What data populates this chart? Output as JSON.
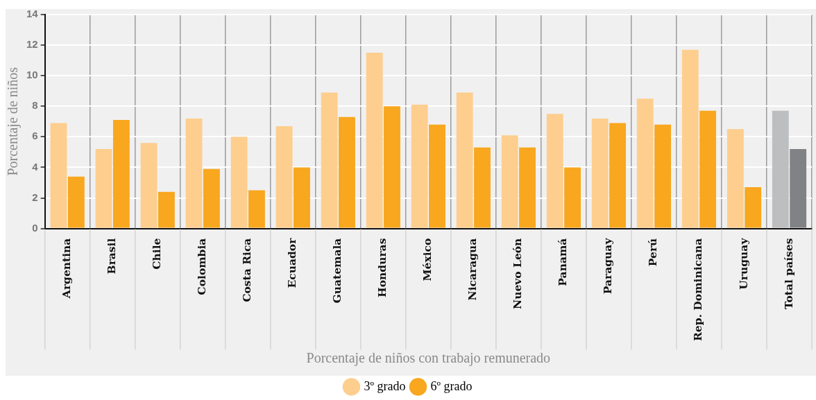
{
  "chart_data": {
    "type": "bar",
    "xlabel": "Porcentaje de niños con trabajo remunerado",
    "ylabel": "Porcentaje de niños",
    "categories": [
      "Argentina",
      "Brasil",
      "Chile",
      "Colombia",
      "Costa Rica",
      "Ecuador",
      "Guatemala",
      "Honduras",
      "México",
      "Nicaragua",
      "Nuevo León",
      "Panamá",
      "Paraguay",
      "Perú",
      "Rep. Dominicana",
      "Uruguay",
      "Total países"
    ],
    "series": [
      {
        "name": "3º grado",
        "color": "#fdce8e",
        "colors": [
          "#fdce8e",
          "#fdce8e",
          "#fdce8e",
          "#fdce8e",
          "#fdce8e",
          "#fdce8e",
          "#fdce8e",
          "#fdce8e",
          "#fdce8e",
          "#fdce8e",
          "#fdce8e",
          "#fdce8e",
          "#fdce8e",
          "#fdce8e",
          "#fdce8e",
          "#fdce8e",
          "#bdbec0"
        ],
        "values": [
          6.9,
          5.2,
          5.6,
          7.2,
          6.0,
          6.7,
          8.9,
          11.5,
          8.1,
          8.9,
          6.1,
          7.5,
          7.2,
          8.5,
          11.7,
          6.5,
          7.7
        ]
      },
      {
        "name": "6º grado",
        "color": "#f8a71e",
        "colors": [
          "#f8a71e",
          "#f8a71e",
          "#f8a71e",
          "#f8a71e",
          "#f8a71e",
          "#f8a71e",
          "#f8a71e",
          "#f8a71e",
          "#f8a71e",
          "#f8a71e",
          "#f8a71e",
          "#f8a71e",
          "#f8a71e",
          "#f8a71e",
          "#f8a71e",
          "#f8a71e",
          "#808285"
        ],
        "values": [
          3.4,
          7.1,
          2.4,
          3.9,
          2.5,
          4.0,
          7.3,
          8.0,
          6.8,
          5.3,
          5.3,
          4.0,
          6.9,
          6.8,
          7.7,
          2.7,
          5.2
        ]
      }
    ],
    "ylim": [
      0,
      14
    ],
    "yticks": [
      0,
      2,
      4,
      6,
      8,
      10,
      12,
      14
    ],
    "grid": true,
    "legend": "bottom"
  }
}
